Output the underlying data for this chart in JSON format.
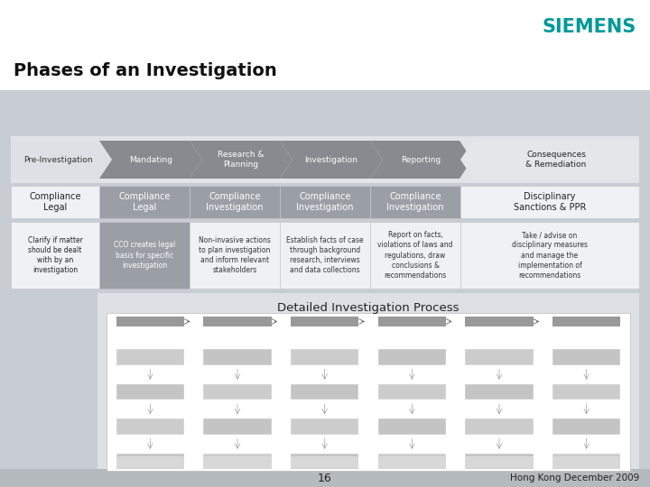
{
  "title": "Phases of an Investigation",
  "siemens_color": "#009999",
  "slide_bg": "#c8ccd3",
  "header_bg": "#ffffff",
  "phases": [
    "Pre-Investigation",
    "Mandating",
    "Research &\nPlanning",
    "Investigation",
    "Reporting",
    "Consequences\n& Remediation"
  ],
  "row1_labels": [
    "Compliance\nLegal",
    "Compliance\nLegal",
    "Compliance\nInvestigation",
    "Compliance\nInvestigation",
    "Compliance\nInvestigation",
    "Disciplinary\nSanctions & PPR"
  ],
  "row2_labels": [
    "Clarify if matter\nshould be dealt\nwith by an\ninvestigation",
    "CCO creates legal\nbasis for specific\ninvestigation",
    "Non-invasive actions\nto plan investigation\nand inform relevant\nstakeholders",
    "Establish facts of case\nthrough background\nresearch, interviews\nand data collections",
    "Report on facts,\nviolations of laws and\nregulations, draw\nconclusions &\nrecommendations",
    "Take / advise on\ndisciplinary measures\nand manage the\nimplementation of\nrecommendations"
  ],
  "detail_title": "Detailed Investigation Process",
  "page_num": "16",
  "footer_text": "Hong Kong December 2009",
  "chevron_gray": "#878b8f",
  "chevron_light": "#dde0e4",
  "chevron_last": "#e4e6e9",
  "cell_gray": "#9a9fa5",
  "cell_light": "#f0f1f3",
  "cell_border": "#c0c4c8",
  "detail_bg": "#dde0e4",
  "footer_bg": "#b5babe"
}
